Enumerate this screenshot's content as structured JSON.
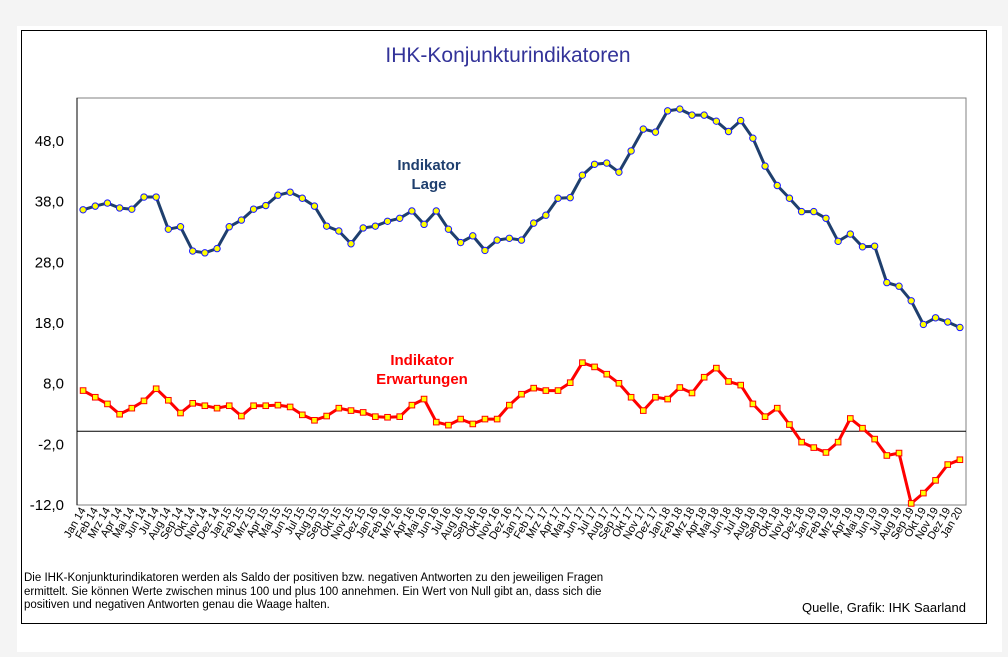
{
  "chart_data": {
    "type": "line",
    "title": "IHK-Konjunkturindikatoren",
    "xlabel": "",
    "ylabel": "",
    "ylim": [
      -12.0,
      55.0
    ],
    "yticks": [
      "48,0",
      "38,0",
      "28,0",
      "18,0",
      "8,0",
      "-2,0",
      "-12,0"
    ],
    "ytick_values": [
      48,
      38,
      28,
      18,
      8,
      -2,
      -12
    ],
    "grid": false,
    "zero_line": 0,
    "categories": [
      "Jan 14",
      "Feb 14",
      "Mrz 14",
      "Apr 14",
      "Mai 14",
      "Jun 14",
      "Jul 14",
      "Aug 14",
      "Sep 14",
      "Okt 14",
      "Nov 14",
      "Dez 14",
      "Jan 15",
      "Feb 15",
      "Mrz 15",
      "Apr 15",
      "Mai 15",
      "Jun 15",
      "Jul 15",
      "Aug 15",
      "Sep 15",
      "Okt 15",
      "Nov 15",
      "Dez 15",
      "Jan 16",
      "Feb 16",
      "Mrz 16",
      "Apr 16",
      "Mai 16",
      "Jun 16",
      "Jul 16",
      "Aug 16",
      "Sep 16",
      "Okt 16",
      "Nov 16",
      "Dez 16",
      "Jan 17",
      "Feb 17",
      "Mrz 17",
      "Apr 17",
      "Mai 17",
      "Jun 17",
      "Jul 17",
      "Aug 17",
      "Sep 17",
      "Okt 17",
      "Nov 17",
      "Dez 17",
      "Jan 18",
      "Feb 18",
      "Mrz 18",
      "Apr 18",
      "Mai 18",
      "Jun 18",
      "Jul 18",
      "Aug 18",
      "Sep 18",
      "Okt 18",
      "Nov 18",
      "Dez 18",
      "Jan 19",
      "Feb 19",
      "Mrz 19",
      "Apr 19",
      "Mai 19",
      "Jun 19",
      "Jul 19",
      "Aug 19",
      "Sep 19",
      "Okt 19",
      "Nov 19",
      "Dez 19",
      "Jan 20"
    ],
    "series": [
      {
        "name": "Indikator Lage",
        "label_lines": [
          "Indikator",
          "Lage"
        ],
        "color": "#1f3f6e",
        "marker": "circle",
        "marker_fill": "#ffff00",
        "marker_edge": "#1a1aff",
        "values": [
          36.5,
          37.1,
          37.6,
          36.8,
          36.6,
          38.6,
          38.6,
          33.3,
          33.7,
          29.7,
          29.4,
          30.1,
          33.7,
          34.8,
          36.6,
          37.2,
          38.9,
          39.4,
          38.4,
          37.1,
          33.8,
          33.0,
          30.9,
          33.5,
          33.8,
          34.6,
          35.1,
          36.3,
          34.1,
          36.3,
          33.3,
          31.1,
          32.2,
          29.8,
          31.5,
          31.8,
          31.5,
          34.3,
          35.6,
          38.4,
          38.5,
          42.2,
          44.0,
          44.2,
          42.7,
          46.2,
          49.8,
          49.3,
          52.8,
          53.1,
          52.1,
          52.1,
          51.1,
          49.4,
          51.2,
          48.3,
          43.7,
          40.5,
          38.4,
          36.2,
          36.2,
          35.1,
          31.3,
          32.5,
          30.4,
          30.5,
          24.5,
          23.9,
          21.5,
          17.6,
          18.7,
          18.0,
          17.1
        ]
      },
      {
        "name": "Indikator Erwartungen",
        "label_lines": [
          "Indikator",
          "Erwartungen"
        ],
        "color": "#ff0000",
        "marker": "square",
        "marker_fill": "#ffff00",
        "marker_edge": "#ff0000",
        "values": [
          6.7,
          5.6,
          4.5,
          2.8,
          3.8,
          5.0,
          7.0,
          5.1,
          3.0,
          4.6,
          4.2,
          3.8,
          4.2,
          2.5,
          4.2,
          4.2,
          4.3,
          4.0,
          2.7,
          1.8,
          2.5,
          3.8,
          3.4,
          3.1,
          2.4,
          2.3,
          2.4,
          4.3,
          5.3,
          1.5,
          1.0,
          2.0,
          1.2,
          2.0,
          2.0,
          4.3,
          6.1,
          7.1,
          6.7,
          6.7,
          8.0,
          11.3,
          10.6,
          9.4,
          7.9,
          5.6,
          3.4,
          5.6,
          5.3,
          7.2,
          6.3,
          8.9,
          10.4,
          8.2,
          7.6,
          4.5,
          2.4,
          3.8,
          1.1,
          -1.8,
          -2.7,
          -3.5,
          -1.8,
          2.1,
          0.5,
          -1.3,
          -4.0,
          -3.6,
          -11.9,
          -10.2,
          -8.1,
          -5.5,
          -4.7
        ]
      }
    ],
    "footnote": "Die IHK-Konjunkturindikatoren werden als Saldo der positiven bzw. negativen Antworten zu den jeweiligen Fragen ermittelt. Sie können Werte zwischen minus 100 und plus 100 annehmen. Ein Wert von Null gibt an, dass sich die positiven und negativen Antworten genau die Waage halten.",
    "source": "Quelle, Grafik: IHK Saarland",
    "title_color": "#333399"
  }
}
